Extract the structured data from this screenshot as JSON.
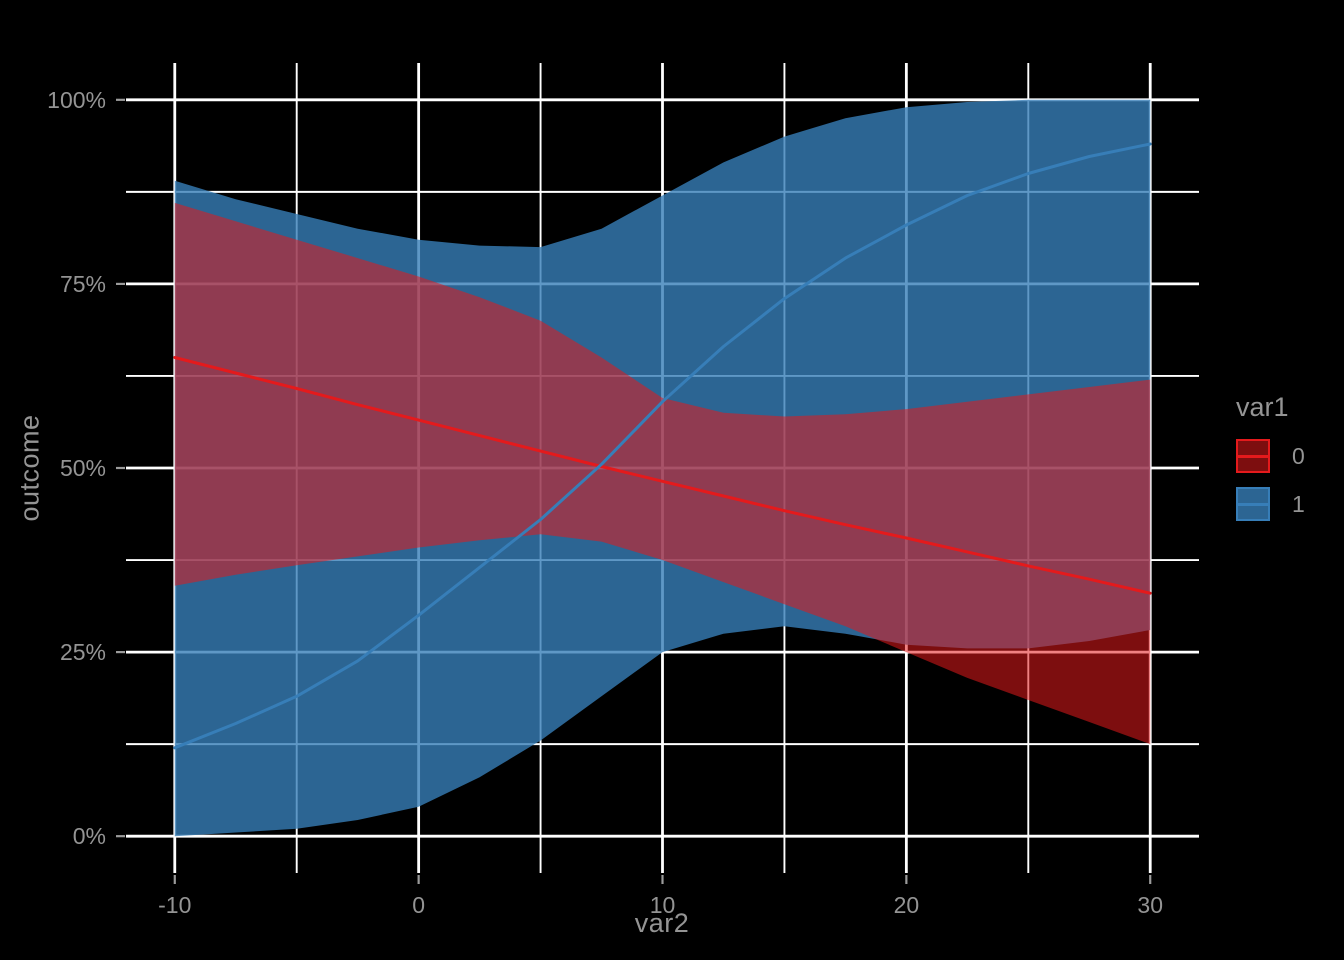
{
  "chart_data": {
    "type": "area",
    "title": "",
    "xlabel": "var2",
    "ylabel": "outcome",
    "xlim": [
      -12,
      32
    ],
    "ylim_pct": [
      -5,
      105
    ],
    "grid": {
      "show": true,
      "color": "#ffffff",
      "major_width": 2.8,
      "minor_width": 1.9
    },
    "background": "#000000",
    "text_color": "#949494",
    "tick_color": "#9b9b9b",
    "x_ticks": {
      "major": [
        -10,
        0,
        10,
        20,
        30
      ],
      "minor": [
        -5,
        5,
        15,
        25
      ],
      "labels": [
        "-10",
        "0",
        "10",
        "20",
        "30"
      ]
    },
    "y_ticks": {
      "major": [
        0,
        25,
        50,
        75,
        100
      ],
      "minor": [
        12.5,
        37.5,
        62.5,
        87.5
      ],
      "labels": [
        "0%",
        "25%",
        "50%",
        "75%",
        "100%"
      ]
    },
    "x": [
      -10,
      -7.5,
      -5,
      -2.5,
      0,
      2.5,
      5,
      7.5,
      10,
      12.5,
      15,
      17.5,
      20,
      22.5,
      25,
      27.5,
      30
    ],
    "series": [
      {
        "name": "0",
        "color": "#E41A1C",
        "fill": "rgba(228,26,28,0.55)",
        "fit": [
          65,
          62.9,
          60.8,
          58.6,
          56.5,
          54.4,
          52.3,
          50.2,
          48.2,
          46.2,
          44.2,
          42.3,
          40.5,
          38.6,
          36.7,
          34.9,
          33
        ],
        "upper": [
          86,
          83.5,
          81,
          78.5,
          76,
          73.2,
          70,
          65,
          59.5,
          57.5,
          57,
          57.3,
          58,
          59,
          60,
          61,
          62
        ],
        "lower": [
          34,
          35.5,
          36.8,
          38,
          39.2,
          40.2,
          41,
          40,
          37.5,
          34.5,
          31.5,
          28.5,
          25,
          21.5,
          18.5,
          15.5,
          12.5
        ]
      },
      {
        "name": "1",
        "color": "#377EB8",
        "fill": "rgba(55,126,184,0.8)",
        "fit": [
          12,
          15.3,
          19,
          23.8,
          30,
          36.5,
          43,
          50.5,
          59,
          66.5,
          73,
          78.5,
          83,
          87,
          90,
          92.3,
          94
        ],
        "upper": [
          89,
          86.5,
          84.5,
          82.5,
          81,
          80.2,
          80,
          82.5,
          87,
          91.5,
          95,
          97.5,
          99,
          99.7,
          100,
          100,
          100
        ],
        "lower": [
          0,
          0.5,
          1,
          2.2,
          4,
          8,
          13,
          19,
          25,
          27.5,
          28.5,
          27.5,
          26,
          25.5,
          25.5,
          26.5,
          28
        ]
      }
    ],
    "legend": {
      "title": "var1",
      "position": "right"
    }
  }
}
